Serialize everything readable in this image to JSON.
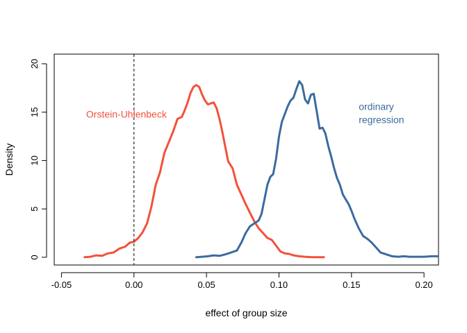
{
  "chart_data": {
    "type": "line",
    "title": "",
    "xlabel": "effect of group size",
    "ylabel": "Density",
    "xlim": [
      -0.055,
      0.21
    ],
    "ylim": [
      -0.8,
      21
    ],
    "x_ticks": [
      -0.05,
      0.0,
      0.05,
      0.1,
      0.15,
      0.2
    ],
    "x_tick_labels": [
      "-0.05",
      "0.00",
      "0.05",
      "0.10",
      "0.15",
      "0.20"
    ],
    "y_ticks": [
      0,
      5,
      10,
      15,
      20
    ],
    "y_tick_labels": [
      "0",
      "5",
      "10",
      "15",
      "20"
    ],
    "grid": false,
    "reference_line": {
      "x": 0.0,
      "style": "dashed",
      "color": "#000000"
    },
    "series": [
      {
        "name": "Orstein-Uhlenbeck",
        "label_lines": [
          "Orstein-Uhlenbeck"
        ],
        "color": "#F4503A",
        "x": [
          -0.034,
          -0.03,
          -0.026,
          -0.022,
          -0.018,
          -0.014,
          -0.01,
          -0.006,
          -0.003,
          0.0,
          0.003,
          0.006,
          0.009,
          0.012,
          0.015,
          0.018,
          0.021,
          0.024,
          0.027,
          0.03,
          0.033,
          0.035,
          0.037,
          0.039,
          0.041,
          0.043,
          0.045,
          0.047,
          0.049,
          0.051,
          0.053,
          0.055,
          0.057,
          0.059,
          0.061,
          0.063,
          0.065,
          0.068,
          0.071,
          0.074,
          0.077,
          0.08,
          0.083,
          0.086,
          0.089,
          0.092,
          0.095,
          0.098,
          0.101,
          0.104,
          0.107,
          0.11,
          0.114,
          0.118,
          0.122,
          0.126,
          0.131
        ],
        "y": [
          0.0,
          0.05,
          0.2,
          0.15,
          0.4,
          0.5,
          0.9,
          1.1,
          1.5,
          1.6,
          2.0,
          2.6,
          3.5,
          5.2,
          7.5,
          8.8,
          10.8,
          11.9,
          13.0,
          14.3,
          14.5,
          15.2,
          16.0,
          17.0,
          17.6,
          17.8,
          17.6,
          16.8,
          16.2,
          15.8,
          15.9,
          16.0,
          15.4,
          14.3,
          12.9,
          11.4,
          9.9,
          9.2,
          7.5,
          6.5,
          5.5,
          4.6,
          3.7,
          3.0,
          2.5,
          2.0,
          1.8,
          1.2,
          0.6,
          0.4,
          0.35,
          0.2,
          0.1,
          0.05,
          0.02,
          0.0,
          0.0
        ]
      },
      {
        "name": "ordinary regression",
        "label_lines": [
          "ordinary",
          "regression"
        ],
        "color": "#3A6B9F",
        "x": [
          0.043,
          0.047,
          0.051,
          0.055,
          0.059,
          0.063,
          0.067,
          0.071,
          0.074,
          0.077,
          0.08,
          0.083,
          0.086,
          0.088,
          0.09,
          0.092,
          0.094,
          0.096,
          0.098,
          0.1,
          0.102,
          0.104,
          0.106,
          0.108,
          0.11,
          0.112,
          0.114,
          0.116,
          0.118,
          0.12,
          0.122,
          0.124,
          0.126,
          0.128,
          0.13,
          0.132,
          0.134,
          0.136,
          0.138,
          0.14,
          0.142,
          0.144,
          0.146,
          0.148,
          0.15,
          0.152,
          0.155,
          0.158,
          0.161,
          0.164,
          0.167,
          0.17,
          0.174,
          0.178,
          0.182,
          0.186,
          0.19,
          0.195,
          0.2,
          0.205,
          0.21
        ],
        "y": [
          0.0,
          0.05,
          0.1,
          0.2,
          0.15,
          0.3,
          0.5,
          0.7,
          1.5,
          2.5,
          3.2,
          3.5,
          3.8,
          4.5,
          6.0,
          7.5,
          8.3,
          8.6,
          10.2,
          12.5,
          14.0,
          14.8,
          15.6,
          16.2,
          16.5,
          17.4,
          18.2,
          17.8,
          16.3,
          15.9,
          16.8,
          16.9,
          15.1,
          13.3,
          13.4,
          12.8,
          11.5,
          10.4,
          9.2,
          8.2,
          7.5,
          6.5,
          6.0,
          5.5,
          4.8,
          4.0,
          3.0,
          2.2,
          1.9,
          1.5,
          1.0,
          0.5,
          0.3,
          0.1,
          0.05,
          0.1,
          0.05,
          0.05,
          0.05,
          0.1,
          0.1
        ]
      }
    ]
  }
}
